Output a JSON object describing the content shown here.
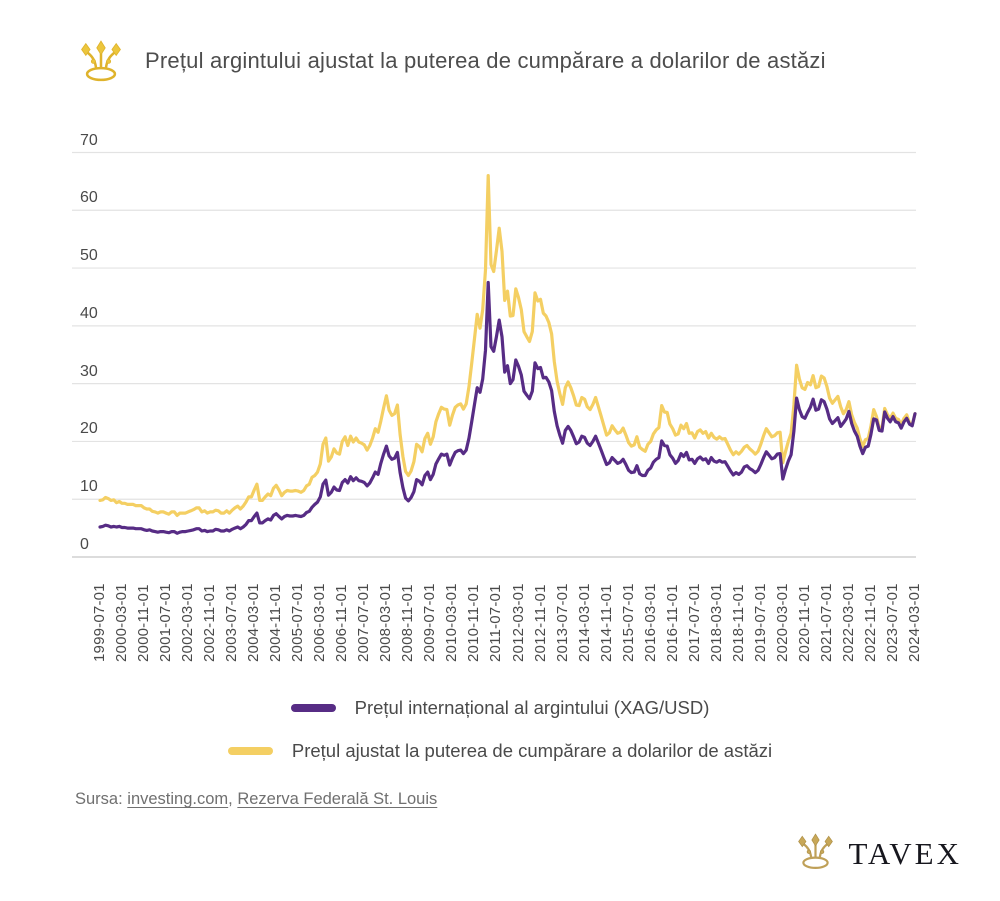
{
  "header": {
    "title": "Prețul argintului ajustat la puterea de cumpărare a dolarilor de astăzi"
  },
  "colors": {
    "nominal_line": "#572c85",
    "adjusted_line": "#f4cf63",
    "grid": "#e3e3e3",
    "axis_zero": "#c8c8c8",
    "tick_text": "#4a4a4a",
    "title_crown_gold": "#ecc63d",
    "logo_crown_gold": "#bfa058",
    "logo_text": "#17171e"
  },
  "chart_data": {
    "type": "line",
    "title": "Prețul argintului ajustat la puterea de cumpărare a dolarilor de astăzi",
    "frequency": "monthly",
    "x_start": "1999-07-01",
    "x_end": "2024-03-01",
    "grid": "horizontal",
    "legend_position": "bottom",
    "ylim": [
      0,
      70
    ],
    "y_ticks": [
      0,
      10,
      20,
      30,
      40,
      50,
      60,
      70
    ],
    "x_tick_step": 8,
    "x_tick_labels": [
      "1999-07-01",
      "2000-03-01",
      "2000-11-01",
      "2001-07-01",
      "2002-03-01",
      "2002-11-01",
      "2003-07-01",
      "2004-03-01",
      "2004-11-01",
      "2005-07-01",
      "2006-03-01",
      "2006-11-01",
      "2007-07-01",
      "2008-03-01",
      "2008-11-01",
      "2009-07-01",
      "2010-03-01",
      "2010-11-01",
      "2011-07-01",
      "2012-03-01",
      "2012-11-01",
      "2013-07-01",
      "2014-03-01",
      "2014-11-01",
      "2015-07-01",
      "2016-03-01",
      "2016-11-01",
      "2017-07-01",
      "2018-03-01",
      "2018-11-01",
      "2019-07-01",
      "2020-03-01",
      "2020-11-01",
      "2021-07-01",
      "2022-03-01",
      "2022-11-01",
      "2023-07-01",
      "2024-03-01"
    ],
    "series": [
      {
        "id": "nominal",
        "name": "Prețul internațional al argintului (XAG/USD)",
        "color": "#572c85",
        "values": [
          5.2,
          5.3,
          5.5,
          5.4,
          5.2,
          5.3,
          5.2,
          5.3,
          5.1,
          5.1,
          5.0,
          5.0,
          5.0,
          4.9,
          4.9,
          4.9,
          4.7,
          4.6,
          4.7,
          4.5,
          4.4,
          4.3,
          4.4,
          4.4,
          4.3,
          4.2,
          4.4,
          4.4,
          4.1,
          4.3,
          4.4,
          4.4,
          4.5,
          4.6,
          4.7,
          4.9,
          4.9,
          4.5,
          4.6,
          4.4,
          4.5,
          4.5,
          4.8,
          4.7,
          4.5,
          4.5,
          4.7,
          4.5,
          4.8,
          5.0,
          5.2,
          4.9,
          5.2,
          5.6,
          6.3,
          6.3,
          7.0,
          7.6,
          5.9,
          5.9,
          6.3,
          6.6,
          6.4,
          7.2,
          7.5,
          7.0,
          6.6,
          7.0,
          7.2,
          7.1,
          7.1,
          7.2,
          7.1,
          7.0,
          7.2,
          7.7,
          7.9,
          8.6,
          9.1,
          9.5,
          10.4,
          12.6,
          13.3,
          10.7,
          11.2,
          12.1,
          11.6,
          11.5,
          12.9,
          13.4,
          12.8,
          13.9,
          13.2,
          13.7,
          13.2,
          13.1,
          12.9,
          12.3,
          12.8,
          13.7,
          14.7,
          14.3,
          16.2,
          17.8,
          19.2,
          17.5,
          16.9,
          17.1,
          18.1,
          14.6,
          12.0,
          10.2,
          9.7,
          10.3,
          11.3,
          13.4,
          13.1,
          12.5,
          14.1,
          14.7,
          13.4,
          14.3,
          16.1,
          17.0,
          17.8,
          17.6,
          17.8,
          15.9,
          17.1,
          18.1,
          18.4,
          18.5,
          17.9,
          18.5,
          20.6,
          23.4,
          26.4,
          29.3,
          28.5,
          30.8,
          35.8,
          47.5,
          36.4,
          35.6,
          38.2,
          41.0,
          38.1,
          32.0,
          33.1,
          30.0,
          30.7,
          34.1,
          33.0,
          31.5,
          28.7,
          28.0,
          27.4,
          28.7,
          33.6,
          32.6,
          32.8,
          31.0,
          31.1,
          30.3,
          28.8,
          25.2,
          22.7,
          21.1,
          19.7,
          21.9,
          22.6,
          21.9,
          20.8,
          19.6,
          19.9,
          20.9,
          20.7,
          19.7,
          19.3,
          20.0,
          20.9,
          19.7,
          18.5,
          17.2,
          16.0,
          16.3,
          17.2,
          16.7,
          16.2,
          16.4,
          16.9,
          16.0,
          15.0,
          14.6,
          14.7,
          15.8,
          14.4,
          14.1,
          14.1,
          15.0,
          15.4,
          16.4,
          16.9,
          17.2,
          20.1,
          19.3,
          19.2,
          17.7,
          17.1,
          16.2,
          16.7,
          17.9,
          17.4,
          18.1,
          16.8,
          16.9,
          16.2,
          17.0,
          17.3,
          16.8,
          17.0,
          16.2,
          17.2,
          16.6,
          16.4,
          16.7,
          16.4,
          16.5,
          15.7,
          14.9,
          14.2,
          14.6,
          14.3,
          14.7,
          15.6,
          15.8,
          15.3,
          15.0,
          14.6,
          15.0,
          16.0,
          17.2,
          18.2,
          17.6,
          17.0,
          17.2,
          17.8,
          17.9,
          13.5,
          15.2,
          16.6,
          17.7,
          21.8,
          27.5,
          25.5,
          24.3,
          24.0,
          25.0,
          25.9,
          27.3,
          25.4,
          25.6,
          27.2,
          26.9,
          25.6,
          23.9,
          23.1,
          23.6,
          24.1,
          22.6,
          23.2,
          23.9,
          25.2,
          23.1,
          21.8,
          20.9,
          19.2,
          17.9,
          19.0,
          19.2,
          21.2,
          23.9,
          23.7,
          21.9,
          21.8,
          25.1,
          24.0,
          23.4,
          24.3,
          23.4,
          23.2,
          22.3,
          23.4,
          24.0,
          23.0,
          22.7,
          24.8
        ]
      },
      {
        "id": "adjusted",
        "name": "Prețul ajustat la puterea de cumpărare a dolarilor de astăzi",
        "color": "#f4cf63",
        "values": [
          9.8,
          9.9,
          10.3,
          10.1,
          9.8,
          9.9,
          9.4,
          9.6,
          9.3,
          9.3,
          9.1,
          9.1,
          9.1,
          8.9,
          8.9,
          8.9,
          8.5,
          8.3,
          8.3,
          7.9,
          7.8,
          7.6,
          7.8,
          7.8,
          7.6,
          7.4,
          7.8,
          7.8,
          7.2,
          7.6,
          7.6,
          7.6,
          7.8,
          8.0,
          8.2,
          8.5,
          8.5,
          7.8,
          8.0,
          7.6,
          7.8,
          7.8,
          8.1,
          8.0,
          7.6,
          7.6,
          8.0,
          7.6,
          8.1,
          8.5,
          8.8,
          8.3,
          8.8,
          9.5,
          10.4,
          10.4,
          11.6,
          12.6,
          9.8,
          9.8,
          10.4,
          10.9,
          10.6,
          11.9,
          12.4,
          11.6,
          10.6,
          11.2,
          11.5,
          11.4,
          11.4,
          11.5,
          11.4,
          11.2,
          11.5,
          12.3,
          12.6,
          13.8,
          14.1,
          14.7,
          16.1,
          19.5,
          20.6,
          16.6,
          17.3,
          18.7,
          18.0,
          17.8,
          20.0,
          20.8,
          19.3,
          20.9,
          19.9,
          20.6,
          19.9,
          19.7,
          19.4,
          18.5,
          19.3,
          20.6,
          22.2,
          21.6,
          23.5,
          25.8,
          27.9,
          25.4,
          24.5,
          24.8,
          26.3,
          21.2,
          17.4,
          14.8,
          14.1,
          14.9,
          16.5,
          19.5,
          19.1,
          18.2,
          20.5,
          21.4,
          19.5,
          20.8,
          23.4,
          24.8,
          25.9,
          25.6,
          25.5,
          22.8,
          24.5,
          25.9,
          26.3,
          26.5,
          25.6,
          26.5,
          29.5,
          33.5,
          37.8,
          42.0,
          39.6,
          42.8,
          49.7,
          66.0,
          50.6,
          49.4,
          53.1,
          56.9,
          52.9,
          44.4,
          46.0,
          41.7,
          41.8,
          46.4,
          44.9,
          42.8,
          39.0,
          38.1,
          37.3,
          39.0,
          45.7,
          44.3,
          44.6,
          42.2,
          41.7,
          40.6,
          38.6,
          33.8,
          30.4,
          28.3,
          26.4,
          29.3,
          30.3,
          29.3,
          27.9,
          26.3,
          26.2,
          27.6,
          27.3,
          26.0,
          25.5,
          26.4,
          27.6,
          26.0,
          24.4,
          22.7,
          21.1,
          21.5,
          22.7,
          22.0,
          21.4,
          21.6,
          22.3,
          21.1,
          19.8,
          19.2,
          19.4,
          20.8,
          19.0,
          18.6,
          18.3,
          19.5,
          20.0,
          21.3,
          22.0,
          22.4,
          26.2,
          25.1,
          25.0,
          23.0,
          22.2,
          21.1,
          21.3,
          22.8,
          22.2,
          23.1,
          21.4,
          21.5,
          20.6,
          21.7,
          22.0,
          21.4,
          21.7,
          20.6,
          21.4,
          20.7,
          20.4,
          20.8,
          20.4,
          20.5,
          19.5,
          18.5,
          17.7,
          18.2,
          17.8,
          18.3,
          19.0,
          19.3,
          18.7,
          18.3,
          17.8,
          18.3,
          19.5,
          21.0,
          22.2,
          21.5,
          20.8,
          21.0,
          21.5,
          21.6,
          16.3,
          18.3,
          20.0,
          21.4,
          26.3,
          33.2,
          30.8,
          29.3,
          29.0,
          30.2,
          29.8,
          31.4,
          29.3,
          29.5,
          31.3,
          31.0,
          29.5,
          27.5,
          26.6,
          27.2,
          27.8,
          26.0,
          24.8,
          25.5,
          26.9,
          24.6,
          23.3,
          22.3,
          20.5,
          19.1,
          20.3,
          20.5,
          22.6,
          25.5,
          24.3,
          22.4,
          22.3,
          25.7,
          24.6,
          24.0,
          24.9,
          24.0,
          23.8,
          22.9,
          24.0,
          24.6,
          23.2,
          22.9,
          24.8
        ]
      }
    ]
  },
  "source": {
    "prefix": "Sursa:",
    "link1": "investing.com",
    "separator": ", ",
    "link2": "Rezerva Federală St. Louis"
  },
  "logo": {
    "text": "TAVEX"
  }
}
